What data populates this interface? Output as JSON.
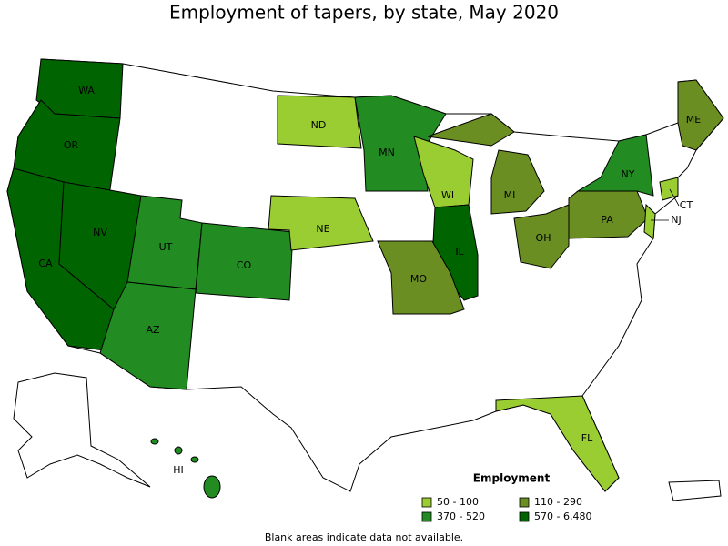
{
  "title": "Employment of tapers, by state, May 2020",
  "states": [
    {
      "label": "WA",
      "color": "#006400"
    },
    {
      "label": "OR",
      "color": "#006400"
    },
    {
      "label": "CA",
      "color": "#006400"
    },
    {
      "label": "NV",
      "color": "#006400"
    },
    {
      "label": "UT",
      "color": "#228b22"
    },
    {
      "label": "CO",
      "color": "#228b22"
    },
    {
      "label": "AZ",
      "color": "#228b22"
    },
    {
      "label": "ND",
      "color": "#9acd32"
    },
    {
      "label": "NE",
      "color": "#9acd32"
    },
    {
      "label": "MN",
      "color": "#228b22"
    },
    {
      "label": "WI",
      "color": "#9acd32"
    },
    {
      "label": "MI",
      "color": "#6b8e23"
    },
    {
      "label": "IL",
      "color": "#006400"
    },
    {
      "label": "MO",
      "color": "#6b8e23"
    },
    {
      "label": "OH",
      "color": "#6b8e23"
    },
    {
      "label": "PA",
      "color": "#6b8e23"
    },
    {
      "label": "NY",
      "color": "#228b22"
    },
    {
      "label": "ME",
      "color": "#6b8e23"
    },
    {
      "label": "CT",
      "color": "#9acd32"
    },
    {
      "label": "NJ",
      "color": "#9acd32"
    },
    {
      "label": "FL",
      "color": "#9acd32"
    },
    {
      "label": "HI",
      "color": "#228b22"
    }
  ],
  "legend": {
    "title": "Employment",
    "items": [
      {
        "label": "50 - 100",
        "color": "#9acd32"
      },
      {
        "label": "110 - 290",
        "color": "#6b8e23"
      },
      {
        "label": "370 - 520",
        "color": "#228b22"
      },
      {
        "label": "570 - 6,480",
        "color": "#006400"
      }
    ]
  },
  "footnote": "Blank areas indicate data not available."
}
